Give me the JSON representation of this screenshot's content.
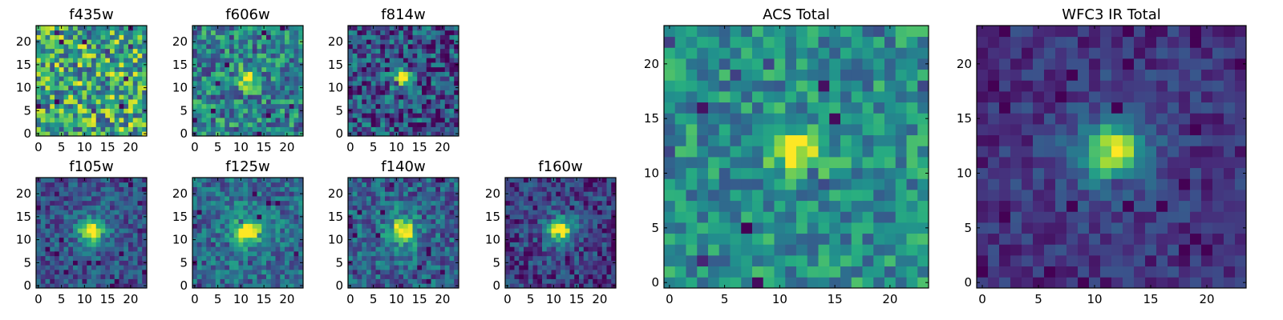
{
  "chart_data": [
    {
      "type": "heatmap",
      "title": "f435w",
      "grid_size": 24,
      "ylim": [
        0,
        24
      ],
      "xlim": [
        0,
        24
      ],
      "xticks": [
        0,
        5,
        10,
        15,
        20
      ],
      "yticks": [
        0,
        5,
        10,
        15,
        20
      ],
      "source_level": 0.1,
      "noise_level": 0.38,
      "baseline": 0.6,
      "halo": false,
      "colormap": "viridis"
    },
    {
      "type": "heatmap",
      "title": "f606w",
      "grid_size": 24,
      "ylim": [
        0,
        24
      ],
      "xlim": [
        0,
        24
      ],
      "xticks": [
        0,
        5,
        10,
        15,
        20
      ],
      "yticks": [
        0,
        5,
        10,
        15,
        20
      ],
      "source_level": 0.55,
      "noise_level": 0.3,
      "baseline": 0.45,
      "halo": false,
      "colormap": "viridis"
    },
    {
      "type": "heatmap",
      "title": "f814w",
      "grid_size": 24,
      "ylim": [
        0,
        24
      ],
      "xlim": [
        0,
        24
      ],
      "xticks": [
        0,
        5,
        10,
        15,
        20
      ],
      "yticks": [
        0,
        5,
        10,
        15,
        20
      ],
      "source_level": 0.75,
      "noise_level": 0.3,
      "baseline": 0.25,
      "halo": false,
      "colormap": "viridis"
    },
    {
      "type": "heatmap",
      "title": "f105w",
      "grid_size": 24,
      "ylim": [
        0,
        24
      ],
      "xlim": [
        0,
        24
      ],
      "xticks": [
        0,
        5,
        10,
        15,
        20
      ],
      "yticks": [
        0,
        5,
        10,
        15,
        20
      ],
      "source_level": 0.78,
      "noise_level": 0.18,
      "baseline": 0.25,
      "halo": true,
      "colormap": "viridis"
    },
    {
      "type": "heatmap",
      "title": "f125w",
      "grid_size": 24,
      "ylim": [
        0,
        24
      ],
      "xlim": [
        0,
        24
      ],
      "xticks": [
        0,
        5,
        10,
        15,
        20
      ],
      "yticks": [
        0,
        5,
        10,
        15,
        20
      ],
      "source_level": 0.7,
      "noise_level": 0.2,
      "baseline": 0.35,
      "halo": true,
      "colormap": "viridis"
    },
    {
      "type": "heatmap",
      "title": "f140w",
      "grid_size": 24,
      "ylim": [
        0,
        24
      ],
      "xlim": [
        0,
        24
      ],
      "xticks": [
        0,
        5,
        10,
        15,
        20
      ],
      "yticks": [
        0,
        5,
        10,
        15,
        20
      ],
      "source_level": 0.75,
      "noise_level": 0.22,
      "baseline": 0.3,
      "halo": true,
      "colormap": "viridis"
    },
    {
      "type": "heatmap",
      "title": "f160w",
      "grid_size": 24,
      "ylim": [
        0,
        24
      ],
      "xlim": [
        0,
        24
      ],
      "xticks": [
        0,
        5,
        10,
        15,
        20
      ],
      "yticks": [
        0,
        5,
        10,
        15,
        20
      ],
      "source_level": 0.85,
      "noise_level": 0.2,
      "baseline": 0.18,
      "halo": true,
      "colormap": "viridis"
    },
    {
      "type": "heatmap",
      "title": "ACS Total",
      "grid_size": 24,
      "ylim": [
        0,
        24
      ],
      "xlim": [
        0,
        24
      ],
      "xticks": [
        0,
        5,
        10,
        15,
        20
      ],
      "yticks": [
        0,
        5,
        10,
        15,
        20
      ],
      "source_level": 0.55,
      "noise_level": 0.22,
      "baseline": 0.5,
      "halo": false,
      "colormap": "viridis"
    },
    {
      "type": "heatmap",
      "title": "WFC3 IR Total",
      "grid_size": 24,
      "ylim": [
        0,
        24
      ],
      "xlim": [
        0,
        24
      ],
      "xticks": [
        0,
        5,
        10,
        15,
        20
      ],
      "yticks": [
        0,
        5,
        10,
        15,
        20
      ],
      "source_level": 0.8,
      "noise_level": 0.12,
      "baseline": 0.15,
      "halo": true,
      "colormap": "viridis"
    }
  ]
}
